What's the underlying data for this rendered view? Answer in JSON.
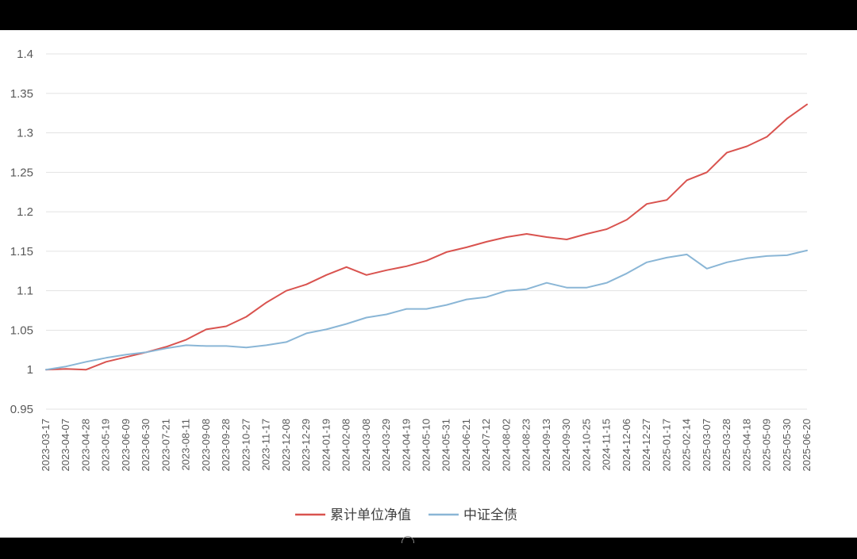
{
  "chart_data": {
    "type": "line",
    "title": "",
    "xlabel": "",
    "ylabel": "",
    "ylim": [
      0.95,
      1.4
    ],
    "yticks": [
      "0.95",
      "1",
      "1.05",
      "1.1",
      "1.15",
      "1.2",
      "1.25",
      "1.3",
      "1.35",
      "1.4"
    ],
    "x": [
      "2023-03-17",
      "2023-04-07",
      "2023-04-28",
      "2023-05-19",
      "2023-06-09",
      "2023-06-30",
      "2023-07-21",
      "2023-08-11",
      "2023-09-08",
      "2023-09-28",
      "2023-10-27",
      "2023-11-17",
      "2023-12-08",
      "2023-12-29",
      "2024-01-19",
      "2024-02-08",
      "2024-03-08",
      "2024-03-29",
      "2024-04-19",
      "2024-05-10",
      "2024-05-31",
      "2024-06-21",
      "2024-07-12",
      "2024-08-02",
      "2024-08-23",
      "2024-09-13",
      "2024-09-30",
      "2024-10-25",
      "2024-11-15",
      "2024-12-06",
      "2024-12-27",
      "2025-01-17",
      "2025-02-14",
      "2025-03-07",
      "2025-03-28",
      "2025-04-18",
      "2025-05-09",
      "2025-05-30",
      "2025-06-20"
    ],
    "grid": true,
    "legend_position": "bottom",
    "series": [
      {
        "name": "累计单位净值",
        "color": "#d9534f",
        "values": [
          1.0,
          1.001,
          1.0,
          1.01,
          1.016,
          1.022,
          1.029,
          1.038,
          1.051,
          1.055,
          1.067,
          1.085,
          1.1,
          1.108,
          1.12,
          1.13,
          1.12,
          1.126,
          1.131,
          1.138,
          1.149,
          1.155,
          1.162,
          1.168,
          1.172,
          1.168,
          1.165,
          1.172,
          1.178,
          1.19,
          1.21,
          1.215,
          1.24,
          1.25,
          1.275,
          1.283,
          1.295,
          1.318,
          1.336
        ]
      },
      {
        "name": "中证全债",
        "color": "#8ab6d6",
        "values": [
          1.0,
          1.004,
          1.01,
          1.015,
          1.019,
          1.022,
          1.027,
          1.031,
          1.03,
          1.03,
          1.028,
          1.031,
          1.035,
          1.046,
          1.051,
          1.058,
          1.066,
          1.07,
          1.077,
          1.077,
          1.082,
          1.089,
          1.092,
          1.1,
          1.102,
          1.11,
          1.104,
          1.104,
          1.11,
          1.122,
          1.136,
          1.142,
          1.146,
          1.128,
          1.136,
          1.141,
          1.144,
          1.145,
          1.151
        ]
      }
    ]
  }
}
